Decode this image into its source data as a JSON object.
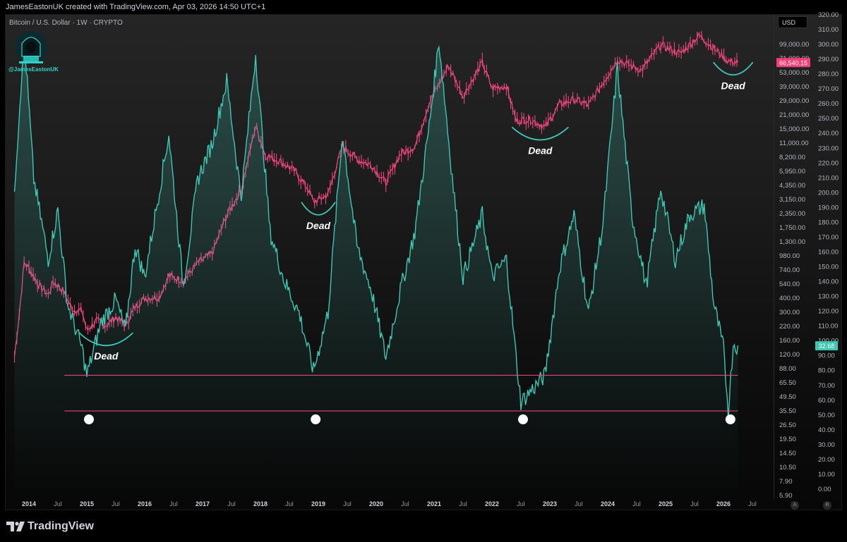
{
  "header": {
    "attribution": "JamesEastonUK created with TradingView.com, Apr 03, 2026 14:50 UTC+1",
    "symbol": "Bitcoin / U.S. Dollar · 1W · CRYPTO",
    "author_badge": "@JamesEastonUK",
    "currency": "USD"
  },
  "footer": {
    "brand": "TradingView",
    "scale_a": "A",
    "scale_b": "B"
  },
  "colors": {
    "price": "#e8457a",
    "oscillator": "#3ec6b3",
    "annotation": "#3ec6b3",
    "level_line": "#e0457a",
    "price_badge": "#f23f78",
    "osc_badge": "#3ec6b3"
  },
  "chart_data": {
    "type": "line",
    "x_ticks": [
      "2014",
      "Jul",
      "2015",
      "Jul",
      "2016",
      "Jul",
      "2017",
      "Jul",
      "2018",
      "Jul",
      "2019",
      "Jul",
      "2020",
      "Jul",
      "2021",
      "Jul",
      "2022",
      "Jul",
      "2023",
      "Jul",
      "2024",
      "Jul",
      "2025",
      "Jul",
      "2026",
      "Jul"
    ],
    "price_axis_labels": [
      "99,000.00",
      "71,000.00",
      "53,000.00",
      "39,000.00",
      "29,000.00",
      "21,000.00",
      "15,000.00",
      "11,000.00",
      "8,200.00",
      "5,950.00",
      "4,350.00",
      "3,150.00",
      "2,350.00",
      "1,750.00",
      "1,300.00",
      "980.00",
      "740.00",
      "540.00",
      "400.00",
      "300.00",
      "220.00",
      "160.00",
      "120.00",
      "88.00",
      "65.50",
      "49.50",
      "35.50",
      "26.50",
      "19.50",
      "14.50",
      "10.50",
      "7.90",
      "5.90"
    ],
    "osc_axis_labels": [
      "320.00",
      "310.00",
      "300.00",
      "290.00",
      "280.00",
      "270.00",
      "260.00",
      "250.00",
      "240.00",
      "230.00",
      "220.00",
      "210.00",
      "200.00",
      "190.00",
      "180.00",
      "170.00",
      "160.00",
      "150.00",
      "140.00",
      "130.00",
      "120.00",
      "110.00",
      "100.00",
      "90.00",
      "80.00",
      "70.00",
      "60.00",
      "50.00",
      "40.00",
      "30.00",
      "20.00",
      "10.00",
      "0.00"
    ],
    "price_last": "66,540.15",
    "osc_last": "32.68",
    "price_scale": "log",
    "series": [
      {
        "name": "BTCUSD",
        "points": [
          [
            "2013-10",
            120
          ],
          [
            "2013-11",
            300
          ],
          [
            "2013-12",
            900
          ],
          [
            "2014-01",
            800
          ],
          [
            "2014-03",
            560
          ],
          [
            "2014-05",
            450
          ],
          [
            "2014-06",
            600
          ],
          [
            "2014-08",
            500
          ],
          [
            "2014-10",
            330
          ],
          [
            "2014-12",
            320
          ],
          [
            "2015-01",
            210
          ],
          [
            "2015-03",
            260
          ],
          [
            "2015-05",
            235
          ],
          [
            "2015-07",
            280
          ],
          [
            "2015-09",
            235
          ],
          [
            "2015-11",
            350
          ],
          [
            "2016-01",
            420
          ],
          [
            "2016-04",
            430
          ],
          [
            "2016-06",
            680
          ],
          [
            "2016-09",
            610
          ],
          [
            "2016-12",
            900
          ],
          [
            "2017-03",
            1100
          ],
          [
            "2017-06",
            2500
          ],
          [
            "2017-09",
            4300
          ],
          [
            "2017-12",
            17000
          ],
          [
            "2018-02",
            9000
          ],
          [
            "2018-05",
            8000
          ],
          [
            "2018-08",
            6500
          ],
          [
            "2018-11",
            4300
          ],
          [
            "2018-12",
            3300
          ],
          [
            "2019-03",
            3900
          ],
          [
            "2019-06",
            11000
          ],
          [
            "2019-09",
            8300
          ],
          [
            "2019-12",
            7300
          ],
          [
            "2020-03",
            5000
          ],
          [
            "2020-06",
            9300
          ],
          [
            "2020-09",
            10800
          ],
          [
            "2020-12",
            28000
          ],
          [
            "2021-04",
            62000
          ],
          [
            "2021-07",
            32000
          ],
          [
            "2021-11",
            66000
          ],
          [
            "2022-01",
            38000
          ],
          [
            "2022-04",
            40000
          ],
          [
            "2022-06",
            19000
          ],
          [
            "2022-09",
            19500
          ],
          [
            "2022-12",
            16500
          ],
          [
            "2023-03",
            27000
          ],
          [
            "2023-06",
            30000
          ],
          [
            "2023-09",
            26500
          ],
          [
            "2023-12",
            43000
          ],
          [
            "2024-03",
            70000
          ],
          [
            "2024-08",
            56000
          ],
          [
            "2024-12",
            97000
          ],
          [
            "2025-04",
            80000
          ],
          [
            "2025-08",
            118000
          ],
          [
            "2025-11",
            90000
          ],
          [
            "2026-02",
            68000
          ],
          [
            "2026-04",
            66540
          ]
        ]
      },
      {
        "name": "Oscillator",
        "points": [
          [
            "2013-10",
            68
          ],
          [
            "2013-12",
            102
          ],
          [
            "2014-02",
            70
          ],
          [
            "2014-05",
            52
          ],
          [
            "2014-07",
            63
          ],
          [
            "2014-09",
            42
          ],
          [
            "2014-12",
            32
          ],
          [
            "2015-01",
            26
          ],
          [
            "2015-04",
            38
          ],
          [
            "2015-07",
            43
          ],
          [
            "2015-09",
            36
          ],
          [
            "2015-11",
            55
          ],
          [
            "2016-01",
            48
          ],
          [
            "2016-06",
            80
          ],
          [
            "2016-09",
            46
          ],
          [
            "2016-12",
            70
          ],
          [
            "2017-03",
            78
          ],
          [
            "2017-06",
            92
          ],
          [
            "2017-09",
            66
          ],
          [
            "2017-12",
            98
          ],
          [
            "2018-03",
            58
          ],
          [
            "2018-06",
            47
          ],
          [
            "2018-09",
            40
          ],
          [
            "2018-12",
            27
          ],
          [
            "2019-03",
            40
          ],
          [
            "2019-06",
            80
          ],
          [
            "2019-09",
            55
          ],
          [
            "2019-12",
            45
          ],
          [
            "2020-03",
            30
          ],
          [
            "2020-06",
            45
          ],
          [
            "2020-09",
            58
          ],
          [
            "2020-12",
            82
          ],
          [
            "2021-02",
            101
          ],
          [
            "2021-05",
            68
          ],
          [
            "2021-07",
            48
          ],
          [
            "2021-11",
            62
          ],
          [
            "2022-01",
            48
          ],
          [
            "2022-04",
            52
          ],
          [
            "2022-06",
            30
          ],
          [
            "2022-07",
            20
          ],
          [
            "2022-12",
            26
          ],
          [
            "2023-03",
            50
          ],
          [
            "2023-06",
            62
          ],
          [
            "2023-09",
            40
          ],
          [
            "2023-12",
            60
          ],
          [
            "2024-03",
            95
          ],
          [
            "2024-06",
            62
          ],
          [
            "2024-09",
            46
          ],
          [
            "2024-12",
            68
          ],
          [
            "2025-03",
            52
          ],
          [
            "2025-06",
            62
          ],
          [
            "2025-09",
            64
          ],
          [
            "2025-11",
            42
          ],
          [
            "2026-01",
            32
          ],
          [
            "2026-02",
            18
          ],
          [
            "2026-03",
            33
          ],
          [
            "2026-04",
            32.68
          ]
        ]
      }
    ],
    "annotations": [
      "Dead",
      "Dead",
      "Dead",
      "Dead"
    ],
    "support_levels": [
      26,
      18
    ]
  }
}
